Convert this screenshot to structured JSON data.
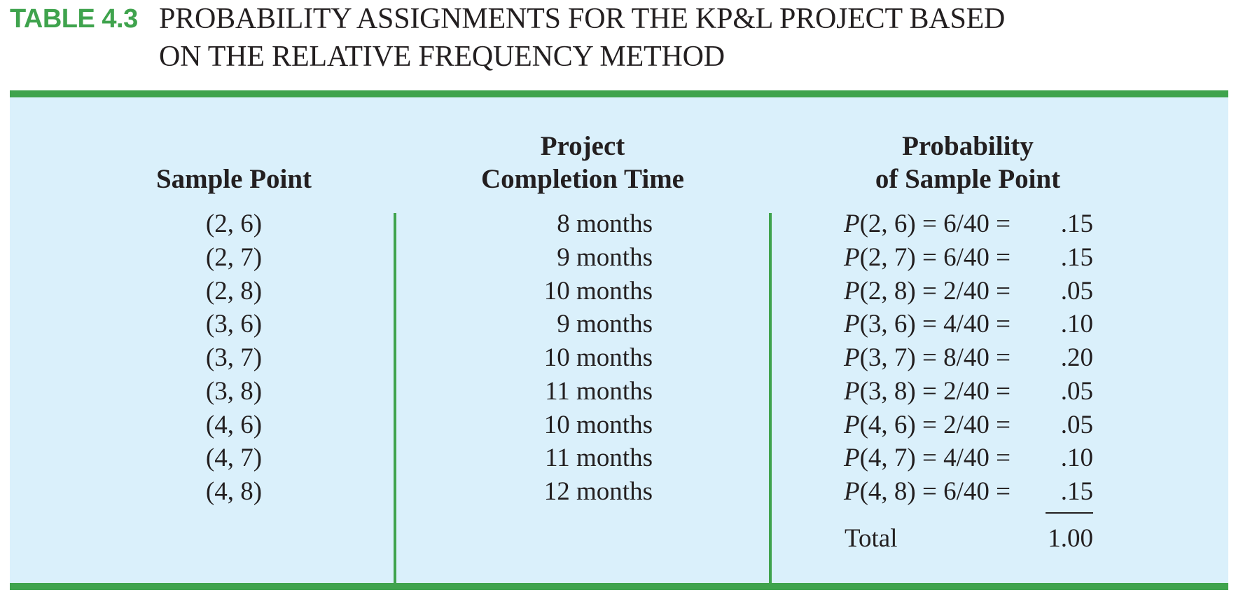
{
  "caption": {
    "label": "TABLE 4.3",
    "title_line1": "PROBABILITY ASSIGNMENTS FOR THE KP&L PROJECT BASED",
    "title_line2": "ON THE RELATIVE FREQUENCY METHOD"
  },
  "headers": {
    "sample_point": "Sample Point",
    "completion_line1": "Project",
    "completion_line2": "Completion Time",
    "probability_line1": "Probability",
    "probability_line2": "of Sample Point"
  },
  "rows": [
    {
      "sample": "(2, 6)",
      "time": "8 months",
      "p": "P",
      "expr": "(2, 6) = 6/40 =",
      "value": ".15"
    },
    {
      "sample": "(2, 7)",
      "time": "9 months",
      "p": "P",
      "expr": "(2, 7) = 6/40 =",
      "value": ".15"
    },
    {
      "sample": "(2, 8)",
      "time": "10 months",
      "p": "P",
      "expr": "(2, 8) = 2/40 =",
      "value": ".05"
    },
    {
      "sample": "(3, 6)",
      "time": "9 months",
      "p": "P",
      "expr": "(3, 6) = 4/40 =",
      "value": ".10"
    },
    {
      "sample": "(3, 7)",
      "time": "10 months",
      "p": "P",
      "expr": "(3, 7) = 8/40 =",
      "value": ".20"
    },
    {
      "sample": "(3, 8)",
      "time": "11 months",
      "p": "P",
      "expr": "(3, 8) = 2/40 =",
      "value": ".05"
    },
    {
      "sample": "(4, 6)",
      "time": "10 months",
      "p": "P",
      "expr": "(4, 6) = 2/40 =",
      "value": ".05"
    },
    {
      "sample": "(4, 7)",
      "time": "11 months",
      "p": "P",
      "expr": "(4, 7) = 4/40 =",
      "value": ".10"
    },
    {
      "sample": "(4, 8)",
      "time": "12 months",
      "p": "P",
      "expr": "(4, 8) = 6/40 =",
      "value": ".15"
    }
  ],
  "total": {
    "label": "Total",
    "value": "1.00"
  },
  "colors": {
    "accent_green": "#3fa34d",
    "panel_blue": "#daf0fb",
    "text": "#231f20"
  }
}
